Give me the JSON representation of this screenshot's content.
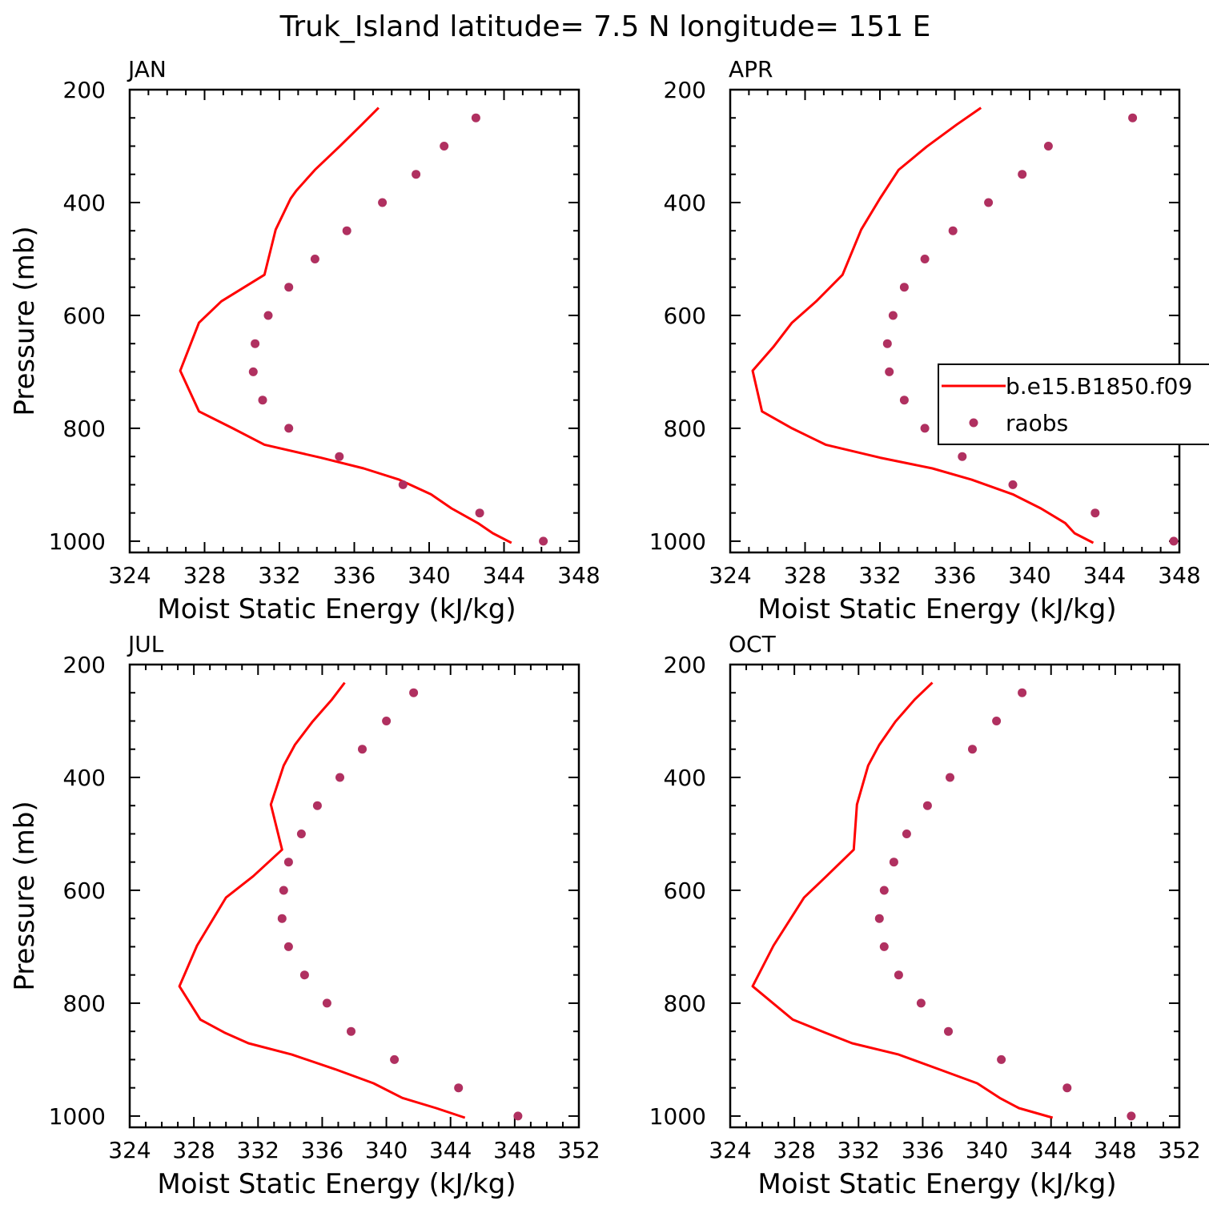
{
  "figure_title": "Truk_Island   latitude= 7.5 N longitude= 151 E",
  "colors": {
    "model_line": "#ff0000",
    "raobs_marker": "#b03060",
    "axis": "#000000"
  },
  "legend": {
    "entries": [
      "b.e15.B1850.f09",
      "raobs"
    ],
    "placement": "right-middle of APR panel"
  },
  "chart_data": [
    {
      "type": "line",
      "panel": "JAN",
      "title": "JAN",
      "xlabel": "Moist Static Energy (kJ/kg)",
      "ylabel": "Pressure (mb)",
      "xlim": [
        324,
        348
      ],
      "ylim": [
        200,
        1020
      ],
      "y_inverted": true,
      "xticks": [
        324,
        328,
        332,
        336,
        340,
        344,
        348
      ],
      "xtick_labels": [
        "324",
        "328",
        "332",
        "336",
        "340",
        "344",
        "348"
      ],
      "yticks": [
        200,
        400,
        600,
        800,
        1000
      ],
      "ytick_labels": [
        "200",
        "400",
        "600",
        "800",
        "1000"
      ],
      "series": [
        {
          "name": "b.e15.B1850.f09",
          "kind": "line",
          "points": [
            [
              337.3,
              232
            ],
            [
              336.4,
              262
            ],
            [
              335.2,
              301
            ],
            [
              333.9,
              342
            ],
            [
              332.9,
              379
            ],
            [
              332.6,
              393
            ],
            [
              331.8,
              448
            ],
            [
              331.2,
              528
            ],
            [
              328.9,
              575
            ],
            [
              327.7,
              613
            ],
            [
              326.7,
              698
            ],
            [
              327.7,
              770
            ],
            [
              329.5,
              800
            ],
            [
              331.2,
              829
            ],
            [
              334.2,
              852
            ],
            [
              336.5,
              871
            ],
            [
              338.4,
              891
            ],
            [
              340.1,
              917
            ],
            [
              341.2,
              942
            ],
            [
              342.6,
              968
            ],
            [
              343.4,
              986
            ],
            [
              344.4,
              1003
            ]
          ]
        },
        {
          "name": "raobs",
          "kind": "scatter",
          "points": [
            [
              342.5,
              250
            ],
            [
              340.8,
              300
            ],
            [
              339.3,
              350
            ],
            [
              337.5,
              400
            ],
            [
              335.6,
              450
            ],
            [
              333.9,
              500
            ],
            [
              332.5,
              550
            ],
            [
              331.4,
              600
            ],
            [
              330.7,
              650
            ],
            [
              330.6,
              700
            ],
            [
              331.1,
              750
            ],
            [
              332.5,
              800
            ],
            [
              335.2,
              850
            ],
            [
              338.6,
              900
            ],
            [
              342.7,
              950
            ],
            [
              346.1,
              1000
            ]
          ]
        }
      ]
    },
    {
      "type": "line",
      "panel": "APR",
      "title": "APR",
      "xlabel": "Moist Static Energy (kJ/kg)",
      "ylabel": "",
      "xlim": [
        324,
        348
      ],
      "ylim": [
        200,
        1020
      ],
      "y_inverted": true,
      "xticks": [
        324,
        328,
        332,
        336,
        340,
        344,
        348
      ],
      "xtick_labels": [
        "324",
        "328",
        "332",
        "336",
        "340",
        "344",
        "348"
      ],
      "yticks": [
        200,
        400,
        600,
        800,
        1000
      ],
      "ytick_labels": [
        "200",
        "400",
        "600",
        "800",
        "1000"
      ],
      "series": [
        {
          "name": "b.e15.B1850.f09",
          "kind": "line",
          "points": [
            [
              337.4,
              232
            ],
            [
              336.1,
              262
            ],
            [
              334.5,
              301
            ],
            [
              333.0,
              342
            ],
            [
              332.0,
              393
            ],
            [
              331.0,
              448
            ],
            [
              330.0,
              528
            ],
            [
              328.6,
              575
            ],
            [
              327.3,
              613
            ],
            [
              326.3,
              656
            ],
            [
              325.2,
              698
            ],
            [
              325.7,
              770
            ],
            [
              327.3,
              800
            ],
            [
              329.1,
              829
            ],
            [
              332.0,
              852
            ],
            [
              334.8,
              871
            ],
            [
              336.9,
              891
            ],
            [
              339.1,
              917
            ],
            [
              340.6,
              942
            ],
            [
              341.9,
              968
            ],
            [
              342.4,
              986
            ],
            [
              343.4,
              1003
            ]
          ]
        },
        {
          "name": "raobs",
          "kind": "scatter",
          "points": [
            [
              345.5,
              250
            ],
            [
              341.0,
              300
            ],
            [
              339.6,
              350
            ],
            [
              337.8,
              400
            ],
            [
              335.9,
              450
            ],
            [
              334.4,
              500
            ],
            [
              333.3,
              550
            ],
            [
              332.7,
              600
            ],
            [
              332.4,
              650
            ],
            [
              332.5,
              700
            ],
            [
              333.3,
              750
            ],
            [
              334.4,
              800
            ],
            [
              336.4,
              850
            ],
            [
              339.1,
              900
            ],
            [
              343.5,
              950
            ],
            [
              347.7,
              1000
            ]
          ]
        }
      ]
    },
    {
      "type": "line",
      "panel": "JUL",
      "title": "JUL",
      "xlabel": "Moist Static Energy (kJ/kg)",
      "ylabel": "Pressure (mb)",
      "xlim": [
        324,
        352
      ],
      "ylim": [
        200,
        1020
      ],
      "y_inverted": true,
      "xticks": [
        324,
        328,
        332,
        336,
        340,
        344,
        348,
        352
      ],
      "xtick_labels": [
        "324",
        "328",
        "332",
        "336",
        "340",
        "344",
        "348",
        "352"
      ],
      "yticks": [
        200,
        400,
        600,
        800,
        1000
      ],
      "ytick_labels": [
        "200",
        "400",
        "600",
        "800",
        "1000"
      ],
      "series": [
        {
          "name": "b.e15.B1850.f09",
          "kind": "line",
          "points": [
            [
              337.4,
              232
            ],
            [
              336.6,
              262
            ],
            [
              335.4,
              301
            ],
            [
              334.3,
              342
            ],
            [
              333.6,
              379
            ],
            [
              332.8,
              448
            ],
            [
              333.5,
              528
            ],
            [
              331.7,
              575
            ],
            [
              330.0,
              613
            ],
            [
              328.2,
              698
            ],
            [
              327.1,
              770
            ],
            [
              328.4,
              829
            ],
            [
              329.9,
              852
            ],
            [
              331.4,
              871
            ],
            [
              334.1,
              891
            ],
            [
              336.8,
              917
            ],
            [
              339.2,
              942
            ],
            [
              341.0,
              968
            ],
            [
              343.1,
              986
            ],
            [
              344.9,
              1003
            ]
          ]
        },
        {
          "name": "raobs",
          "kind": "scatter",
          "points": [
            [
              341.7,
              250
            ],
            [
              340.0,
              300
            ],
            [
              338.5,
              350
            ],
            [
              337.1,
              400
            ],
            [
              335.7,
              450
            ],
            [
              334.7,
              500
            ],
            [
              333.9,
              550
            ],
            [
              333.6,
              600
            ],
            [
              333.5,
              650
            ],
            [
              333.9,
              700
            ],
            [
              334.9,
              750
            ],
            [
              336.3,
              800
            ],
            [
              337.8,
              850
            ],
            [
              340.5,
              900
            ],
            [
              344.5,
              950
            ],
            [
              348.2,
              1000
            ]
          ]
        }
      ]
    },
    {
      "type": "line",
      "panel": "OCT",
      "title": "OCT",
      "xlabel": "Moist Static Energy (kJ/kg)",
      "ylabel": "",
      "xlim": [
        324,
        352
      ],
      "ylim": [
        200,
        1020
      ],
      "y_inverted": true,
      "xticks": [
        324,
        328,
        332,
        336,
        340,
        344,
        348,
        352
      ],
      "xtick_labels": [
        "324",
        "328",
        "332",
        "336",
        "340",
        "344",
        "348",
        "352"
      ],
      "yticks": [
        200,
        400,
        600,
        800,
        1000
      ],
      "ytick_labels": [
        "200",
        "400",
        "600",
        "800",
        "1000"
      ],
      "series": [
        {
          "name": "b.e15.B1850.f09",
          "kind": "line",
          "points": [
            [
              336.6,
              232
            ],
            [
              335.5,
              262
            ],
            [
              334.3,
              301
            ],
            [
              333.3,
              342
            ],
            [
              332.6,
              379
            ],
            [
              331.9,
              448
            ],
            [
              331.7,
              528
            ],
            [
              330.0,
              575
            ],
            [
              328.6,
              613
            ],
            [
              326.7,
              698
            ],
            [
              325.4,
              770
            ],
            [
              327.9,
              829
            ],
            [
              329.9,
              852
            ],
            [
              331.6,
              871
            ],
            [
              334.5,
              891
            ],
            [
              337.0,
              917
            ],
            [
              339.4,
              942
            ],
            [
              340.8,
              968
            ],
            [
              342.0,
              986
            ],
            [
              344.1,
              1003
            ]
          ]
        },
        {
          "name": "raobs",
          "kind": "scatter",
          "points": [
            [
              342.2,
              250
            ],
            [
              340.6,
              300
            ],
            [
              339.1,
              350
            ],
            [
              337.7,
              400
            ],
            [
              336.3,
              450
            ],
            [
              335.0,
              500
            ],
            [
              334.2,
              550
            ],
            [
              333.6,
              600
            ],
            [
              333.3,
              650
            ],
            [
              333.6,
              700
            ],
            [
              334.5,
              750
            ],
            [
              335.9,
              800
            ],
            [
              337.6,
              850
            ],
            [
              340.9,
              900
            ],
            [
              345.0,
              950
            ],
            [
              349.0,
              1000
            ]
          ]
        }
      ]
    }
  ]
}
